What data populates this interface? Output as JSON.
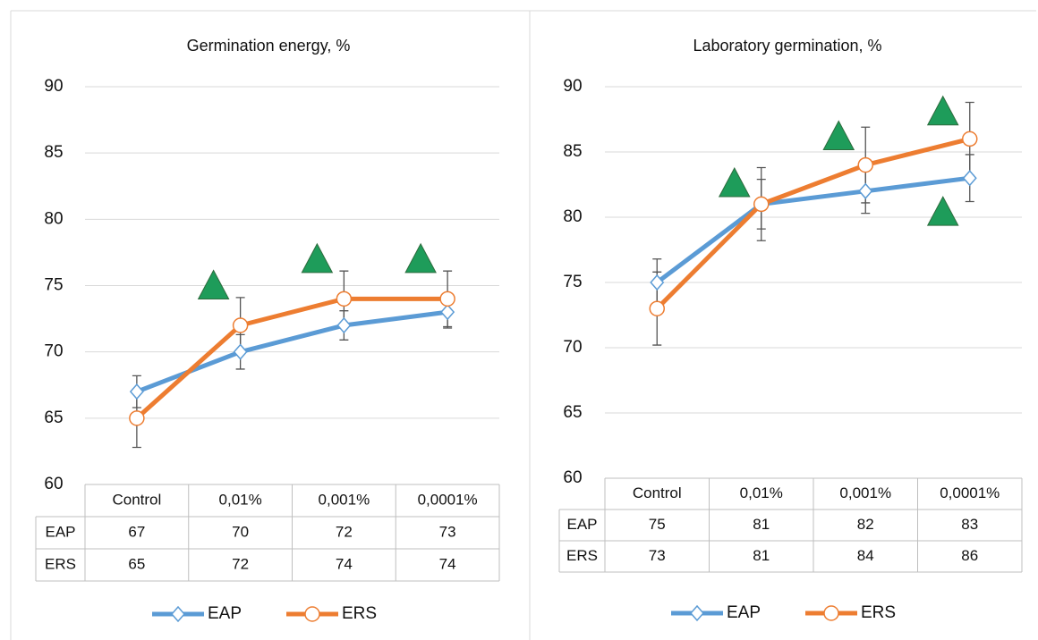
{
  "chart_data": [
    {
      "type": "line",
      "title": "Germination energy, %",
      "categories": [
        "Control",
        "0,01%",
        "0,001%",
        "0,0001%"
      ],
      "series": [
        {
          "name": "EAP",
          "color": "#5b9bd5",
          "values": [
            67,
            70,
            72,
            73
          ],
          "errors": [
            1.2,
            1.3,
            1.1,
            1.2
          ]
        },
        {
          "name": "ERS",
          "color": "#ed7d31",
          "values": [
            65,
            72,
            74,
            74
          ],
          "errors": [
            2.2,
            2.1,
            2.1,
            2.1
          ]
        }
      ],
      "markers": {
        "color": "#1e9c5a",
        "x": [
          "0,01%",
          "0,001%",
          "0,0001%"
        ],
        "values": [
          75,
          77,
          77
        ]
      },
      "ylim": [
        60,
        90
      ],
      "yticks": [
        60,
        65,
        70,
        75,
        80,
        85,
        90
      ],
      "grid": true,
      "legend": "bottom"
    },
    {
      "type": "line",
      "title": "Laboratory germination, %",
      "categories": [
        "Control",
        "0,01%",
        "0,001%",
        "0,0001%"
      ],
      "series": [
        {
          "name": "EAP",
          "color": "#5b9bd5",
          "values": [
            75,
            81,
            82,
            83
          ],
          "errors": [
            1.8,
            1.9,
            1.7,
            1.8
          ]
        },
        {
          "name": "ERS",
          "color": "#ed7d31",
          "values": [
            73,
            81,
            84,
            86
          ],
          "errors": [
            2.8,
            2.8,
            2.9,
            2.8
          ]
        }
      ],
      "markers": {
        "color": "#1e9c5a",
        "x": [
          "0,01%",
          "0,001%",
          "0,0001%",
          "0,0001%"
        ],
        "values": [
          82.6,
          86.2,
          88.1,
          80.4
        ]
      },
      "ylim": [
        60,
        90
      ],
      "yticks": [
        60,
        65,
        70,
        75,
        80,
        85,
        90
      ],
      "grid": true,
      "legend": "bottom"
    }
  ]
}
